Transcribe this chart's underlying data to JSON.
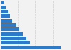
{
  "values": [
    260,
    125,
    110,
    95,
    80,
    68,
    50,
    40,
    30,
    22,
    14
  ],
  "bar_color": "#2b7bca",
  "background_color": "#f2f2f2",
  "grid_color": "#d0d0d0",
  "xlim": [
    0,
    300
  ],
  "bar_height": 0.75
}
